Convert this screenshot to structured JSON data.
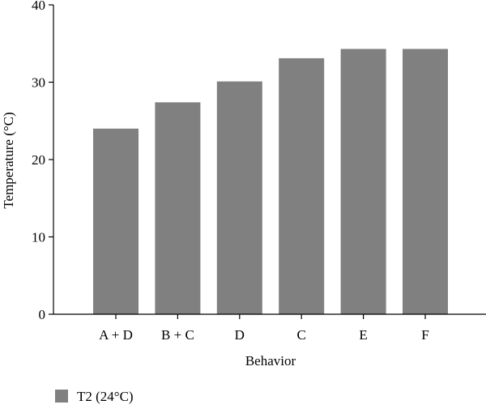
{
  "chart_data": {
    "type": "bar",
    "categories": [
      "A + D",
      "B + C",
      "D",
      "C",
      "E",
      "F"
    ],
    "series": [
      {
        "name": "T2 (24°C)",
        "values": [
          24.0,
          27.4,
          30.1,
          33.1,
          34.3,
          34.3
        ]
      }
    ],
    "xlabel": "Behavior",
    "ylabel": "Temperature (°C)",
    "ylim": [
      0,
      40
    ],
    "yticks": [
      "0",
      "10",
      "20",
      "30",
      "40"
    ],
    "grid": false,
    "legend_position": "bottom-left",
    "bar_color": "#808080",
    "axis_color": "#000000"
  }
}
